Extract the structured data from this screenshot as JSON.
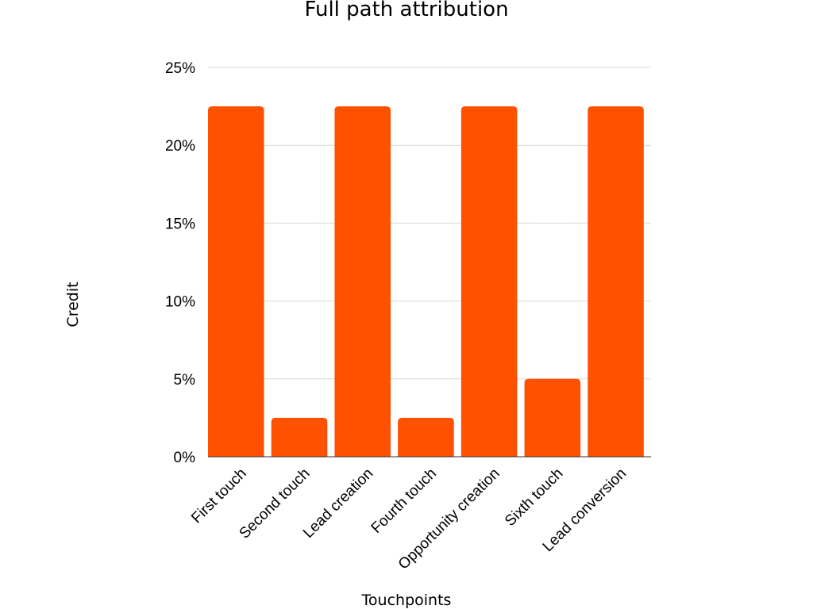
{
  "chart_data": {
    "type": "bar",
    "title": "Full path attribution",
    "xlabel": "Touchpoints",
    "ylabel": "Credit",
    "categories": [
      "First touch",
      "Second touch",
      "Lead creation",
      "Fourth touch",
      "Opportunity creation",
      "Sixth touch",
      "Lead conversion"
    ],
    "values": [
      22.5,
      2.5,
      22.5,
      2.5,
      22.5,
      5,
      22.5
    ],
    "y_ticks": [
      "0%",
      "5%",
      "10%",
      "15%",
      "20%",
      "25%"
    ],
    "ylim": [
      0,
      25
    ],
    "grid": true,
    "legend": "none",
    "bar_color": "#ff5100"
  }
}
